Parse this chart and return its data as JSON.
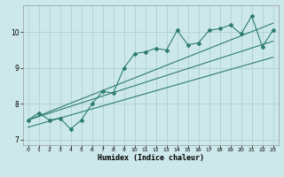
{
  "xlabel": "Humidex (Indice chaleur)",
  "ylabel": "",
  "bg_color": "#cde8eb",
  "grid_color": "#b0d0d4",
  "line_color": "#2e7d6e",
  "x_data": [
    0,
    1,
    2,
    3,
    4,
    5,
    6,
    7,
    8,
    9,
    10,
    11,
    12,
    13,
    14,
    15,
    16,
    17,
    18,
    19,
    20,
    21,
    22,
    23
  ],
  "line1_y": [
    7.55,
    7.75,
    7.55,
    7.6,
    7.3,
    7.55,
    8.0,
    8.35,
    8.3,
    9.0,
    9.4,
    9.45,
    9.55,
    9.5,
    10.05,
    9.65,
    9.7,
    10.05,
    10.1,
    10.2,
    9.95,
    10.45,
    9.6,
    10.05
  ],
  "trend1_x": [
    0,
    23
  ],
  "trend1_y": [
    7.55,
    10.25
  ],
  "trend2_x": [
    0,
    23
  ],
  "trend2_y": [
    7.55,
    9.75
  ],
  "trend3_x": [
    0,
    23
  ],
  "trend3_y": [
    7.35,
    9.3
  ],
  "xlim": [
    -0.5,
    23.5
  ],
  "ylim": [
    6.85,
    10.75
  ],
  "yticks": [
    7,
    8,
    9,
    10
  ],
  "xticks": [
    0,
    1,
    2,
    3,
    4,
    5,
    6,
    7,
    8,
    9,
    10,
    11,
    12,
    13,
    14,
    15,
    16,
    17,
    18,
    19,
    20,
    21,
    22,
    23
  ]
}
